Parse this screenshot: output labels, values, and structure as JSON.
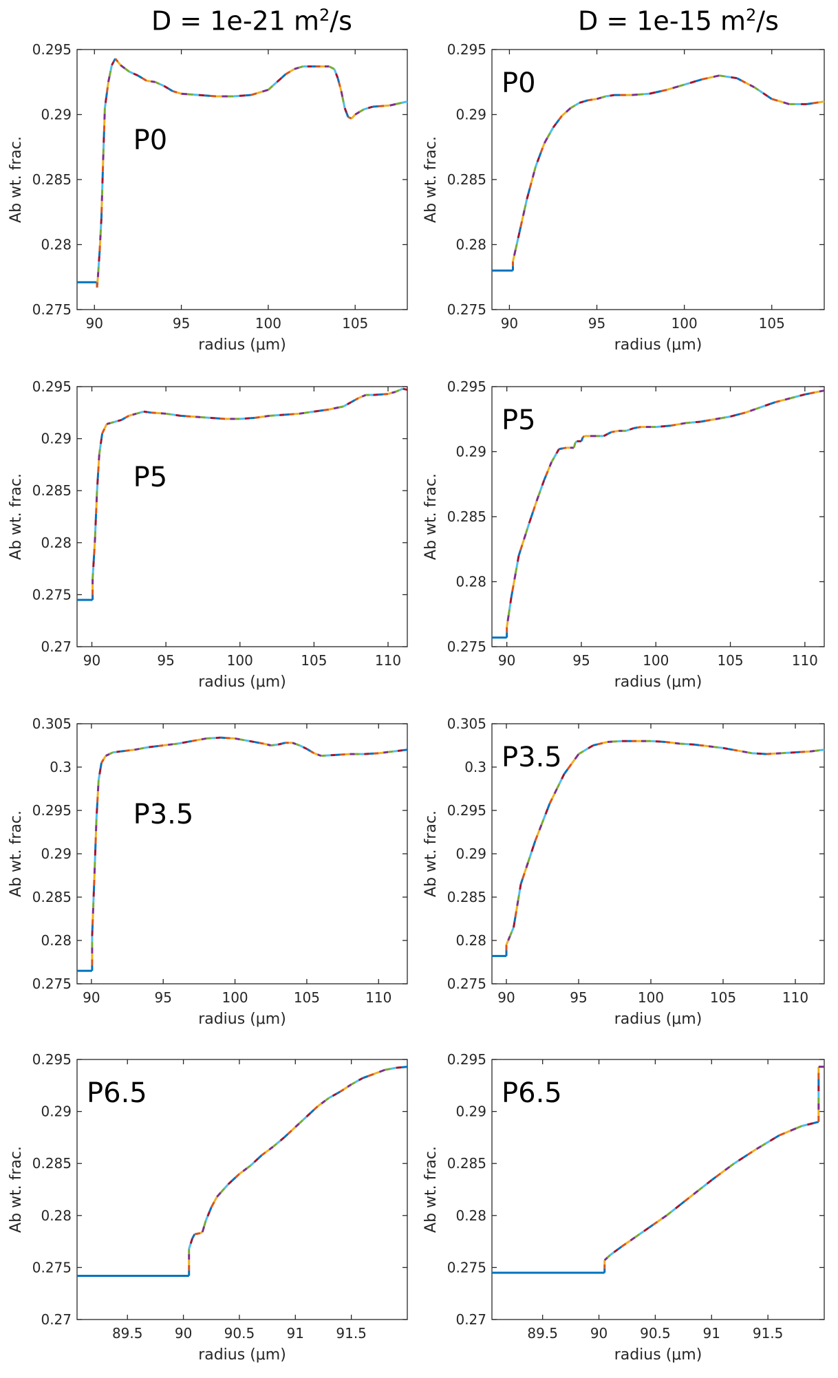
{
  "titles": {
    "left": {
      "base": "D = 1e-21 m",
      "sup": "2",
      "tail": "/s"
    },
    "right": {
      "base": "D = 1e-15 m",
      "sup": "2",
      "tail": "/s"
    }
  },
  "colors": {
    "segments": [
      "#0072BD",
      "#D95319",
      "#EDB120",
      "#7E2F8E",
      "#77AC30",
      "#4DBEEE",
      "#A2142F"
    ],
    "axis": "#262626"
  },
  "chart_data": [
    {
      "type": "line",
      "panel_label": "P0",
      "label_pos": "upper-middle",
      "xlabel": "radius (μm)",
      "ylabel": "Ab wt. frac.",
      "xlim": [
        89,
        108
      ],
      "ylim": [
        0.275,
        0.295
      ],
      "xticks": [
        90,
        95,
        100,
        105
      ],
      "xticklabels": [
        "90",
        "95",
        "100",
        "105"
      ],
      "yticks": [
        0.275,
        0.28,
        0.285,
        0.29,
        0.295
      ],
      "yticklabels": [
        "0.275",
        "0.28",
        "0.285",
        "0.29",
        "0.295"
      ],
      "x": [
        89,
        90.15,
        90.15,
        90.2,
        90.3,
        90.4,
        90.5,
        90.6,
        90.8,
        91.0,
        91.2,
        91.5,
        92.0,
        92.5,
        93.0,
        93.5,
        94.0,
        94.5,
        95.0,
        96.0,
        97.0,
        98.0,
        99.0,
        100.0,
        100.5,
        101.0,
        101.5,
        102.0,
        102.5,
        103.0,
        103.5,
        103.8,
        104.0,
        104.2,
        104.4,
        104.6,
        104.8,
        105.0,
        105.5,
        106.0,
        107.0,
        108.0
      ],
      "y": [
        0.2771,
        0.2771,
        0.2767,
        0.2775,
        0.2795,
        0.282,
        0.2865,
        0.2905,
        0.2925,
        0.2938,
        0.2943,
        0.2938,
        0.2933,
        0.293,
        0.2926,
        0.2925,
        0.2922,
        0.2918,
        0.2916,
        0.2915,
        0.2914,
        0.2914,
        0.2915,
        0.2919,
        0.2925,
        0.2931,
        0.2935,
        0.2937,
        0.2937,
        0.2937,
        0.2937,
        0.2935,
        0.2928,
        0.2918,
        0.2905,
        0.2898,
        0.2897,
        0.29,
        0.2904,
        0.2906,
        0.2907,
        0.291
      ]
    },
    {
      "type": "line",
      "panel_label": "P0",
      "label_pos": "upper-left",
      "xlabel": "radius (μm)",
      "ylabel": "Ab wt. frac.",
      "xlim": [
        89,
        108
      ],
      "ylim": [
        0.275,
        0.295
      ],
      "xticks": [
        90,
        95,
        100,
        105
      ],
      "xticklabels": [
        "90",
        "95",
        "100",
        "105"
      ],
      "yticks": [
        0.275,
        0.28,
        0.285,
        0.29,
        0.295
      ],
      "yticklabels": [
        "0.275",
        "0.28",
        "0.285",
        "0.29",
        "0.295"
      ],
      "x": [
        89,
        90.2,
        90.2,
        90.5,
        91.0,
        91.5,
        92.0,
        92.5,
        93.0,
        93.5,
        94.0,
        94.5,
        95.0,
        95.5,
        96.0,
        97.0,
        98.0,
        99.0,
        100.0,
        101.0,
        102.0,
        103.0,
        104.0,
        105.0,
        106.0,
        107.0,
        108.0
      ],
      "y": [
        0.278,
        0.278,
        0.2787,
        0.2805,
        0.2835,
        0.286,
        0.2878,
        0.289,
        0.2899,
        0.2905,
        0.2909,
        0.2911,
        0.2912,
        0.2914,
        0.2915,
        0.2915,
        0.2916,
        0.2919,
        0.2923,
        0.2927,
        0.293,
        0.2928,
        0.2921,
        0.2912,
        0.2908,
        0.2908,
        0.291
      ]
    },
    {
      "type": "line",
      "panel_label": "P5",
      "label_pos": "upper-middle",
      "xlabel": "radius (μm)",
      "ylabel": "Ab wt. frac.",
      "xlim": [
        89,
        111.3
      ],
      "ylim": [
        0.27,
        0.295
      ],
      "xticks": [
        90,
        95,
        100,
        105,
        110
      ],
      "xticklabels": [
        "90",
        "95",
        "100",
        "105",
        "110"
      ],
      "yticks": [
        0.27,
        0.275,
        0.28,
        0.285,
        0.29,
        0.295
      ],
      "yticklabels": [
        "0.27",
        "0.275",
        "0.28",
        "0.285",
        "0.29",
        "0.295"
      ],
      "x": [
        89,
        90.05,
        90.05,
        90.2,
        90.35,
        90.5,
        90.7,
        91.0,
        91.5,
        92.0,
        92.5,
        93.0,
        93.5,
        94.0,
        95.0,
        96.0,
        97.0,
        98.0,
        99.0,
        100.0,
        101.0,
        102.0,
        103.0,
        104.0,
        105.0,
        106.0,
        107.0,
        107.5,
        108.0,
        108.5,
        109.0,
        110.0,
        110.5,
        111.0,
        111.3
      ],
      "y": [
        0.2745,
        0.2745,
        0.2765,
        0.28,
        0.285,
        0.2885,
        0.2905,
        0.2914,
        0.2916,
        0.2918,
        0.2922,
        0.2924,
        0.2926,
        0.2925,
        0.2924,
        0.2922,
        0.2921,
        0.292,
        0.2919,
        0.2919,
        0.292,
        0.2922,
        0.2923,
        0.2924,
        0.2926,
        0.2928,
        0.2931,
        0.2935,
        0.2939,
        0.2942,
        0.2942,
        0.2943,
        0.2945,
        0.2948,
        0.2947
      ]
    },
    {
      "type": "line",
      "panel_label": "P5",
      "label_pos": "upper-left",
      "xlabel": "radius (μm)",
      "ylabel": "Ab wt. frac.",
      "xlim": [
        89,
        111.3
      ],
      "ylim": [
        0.275,
        0.295
      ],
      "xticks": [
        90,
        95,
        100,
        105,
        110
      ],
      "xticklabels": [
        "90",
        "95",
        "100",
        "105",
        "110"
      ],
      "yticks": [
        0.275,
        0.28,
        0.285,
        0.29,
        0.295
      ],
      "yticklabels": [
        "0.275",
        "0.28",
        "0.285",
        "0.29",
        "0.295"
      ],
      "x": [
        89,
        90.0,
        90.0,
        90.3,
        90.8,
        91.5,
        92.0,
        92.5,
        93.0,
        93.5,
        94.0,
        94.5,
        94.6,
        94.7,
        95.0,
        95.1,
        95.2,
        96.0,
        96.5,
        97.0,
        97.5,
        98.0,
        98.5,
        99.0,
        100.0,
        101.0,
        102.0,
        103.0,
        104.0,
        105.0,
        106.0,
        107.0,
        108.0,
        109.0,
        110.0,
        111.3
      ],
      "y": [
        0.2757,
        0.2757,
        0.2765,
        0.2788,
        0.282,
        0.2845,
        0.2862,
        0.2878,
        0.2892,
        0.2902,
        0.2903,
        0.2903,
        0.2907,
        0.2908,
        0.2908,
        0.2911,
        0.2912,
        0.2912,
        0.2912,
        0.2915,
        0.2916,
        0.2916,
        0.2918,
        0.2919,
        0.2919,
        0.292,
        0.2922,
        0.2923,
        0.2925,
        0.2927,
        0.293,
        0.2934,
        0.2938,
        0.2941,
        0.2944,
        0.2947
      ]
    },
    {
      "type": "line",
      "panel_label": "P3.5",
      "label_pos": "upper-middle",
      "xlabel": "radius (μm)",
      "ylabel": "Ab wt. frac.",
      "xlim": [
        89,
        112
      ],
      "ylim": [
        0.275,
        0.305
      ],
      "xticks": [
        90,
        95,
        100,
        105,
        110
      ],
      "xticklabels": [
        "90",
        "95",
        "100",
        "105",
        "110"
      ],
      "yticks": [
        0.275,
        0.28,
        0.285,
        0.29,
        0.295,
        0.3,
        0.305
      ],
      "yticklabels": [
        "0.275",
        "0.28",
        "0.285",
        "0.29",
        "0.295",
        "0.3",
        "0.305"
      ],
      "x": [
        89,
        90.05,
        90.05,
        90.2,
        90.35,
        90.5,
        90.7,
        91.0,
        91.5,
        92.0,
        93.0,
        94.0,
        95.0,
        96.0,
        97.0,
        98.0,
        99.0,
        100.0,
        101.0,
        102.0,
        102.5,
        103.0,
        103.5,
        104.0,
        104.5,
        105.0,
        105.5,
        106.0,
        107.0,
        108.0,
        109.0,
        110.0,
        111.0,
        112.0
      ],
      "y": [
        0.2765,
        0.2765,
        0.2805,
        0.287,
        0.294,
        0.2985,
        0.3005,
        0.3013,
        0.3017,
        0.3018,
        0.302,
        0.3023,
        0.3025,
        0.3027,
        0.303,
        0.3033,
        0.3034,
        0.3033,
        0.303,
        0.3027,
        0.3025,
        0.3026,
        0.3028,
        0.3028,
        0.3025,
        0.3021,
        0.3016,
        0.3013,
        0.3014,
        0.3015,
        0.3015,
        0.3016,
        0.3018,
        0.302
      ]
    },
    {
      "type": "line",
      "panel_label": "P3.5",
      "label_pos": "upper-left",
      "xlabel": "radius (μm)",
      "ylabel": "Ab wt. frac.",
      "xlim": [
        89,
        112
      ],
      "ylim": [
        0.275,
        0.305
      ],
      "xticks": [
        90,
        95,
        100,
        105,
        110
      ],
      "xticklabels": [
        "90",
        "95",
        "100",
        "105",
        "110"
      ],
      "yticks": [
        0.275,
        0.28,
        0.285,
        0.29,
        0.295,
        0.3,
        0.305
      ],
      "yticklabels": [
        "0.275",
        "0.28",
        "0.285",
        "0.29",
        "0.295",
        "0.3",
        "0.305"
      ],
      "x": [
        89,
        90.0,
        90.0,
        90.5,
        91.0,
        92.0,
        93.0,
        94.0,
        95.0,
        96.0,
        97.0,
        98.0,
        99.0,
        100.0,
        101.0,
        102.0,
        103.0,
        104.0,
        105.0,
        106.0,
        107.0,
        108.0,
        109.0,
        110.0,
        111.0,
        112.0
      ],
      "y": [
        0.2782,
        0.2782,
        0.2795,
        0.2815,
        0.2865,
        0.2915,
        0.2958,
        0.2992,
        0.3015,
        0.3025,
        0.3029,
        0.303,
        0.303,
        0.303,
        0.3029,
        0.3027,
        0.3026,
        0.3024,
        0.3022,
        0.3019,
        0.3016,
        0.3015,
        0.3016,
        0.3017,
        0.3018,
        0.302
      ]
    },
    {
      "type": "line",
      "panel_label": "P6.5",
      "label_pos": "upper-left",
      "xlabel": "radius (μm)",
      "ylabel": "Ab wt. frac.",
      "xlim": [
        89.05,
        92.0
      ],
      "ylim": [
        0.27,
        0.295
      ],
      "xticks": [
        89.5,
        90,
        90.5,
        91,
        91.5
      ],
      "xticklabels": [
        "89.5",
        "90",
        "90.5",
        "91",
        "91.5"
      ],
      "yticks": [
        0.27,
        0.275,
        0.28,
        0.285,
        0.29,
        0.295
      ],
      "yticklabels": [
        "0.27",
        "0.275",
        "0.28",
        "0.285",
        "0.29",
        "0.295"
      ],
      "x": [
        89.05,
        90.05,
        90.05,
        90.08,
        90.1,
        90.15,
        90.17,
        90.2,
        90.25,
        90.3,
        90.4,
        90.5,
        90.6,
        90.7,
        90.8,
        90.9,
        91.0,
        91.1,
        91.2,
        91.3,
        91.4,
        91.5,
        91.6,
        91.7,
        91.8,
        91.9,
        92.0
      ],
      "y": [
        0.2742,
        0.2742,
        0.2768,
        0.2778,
        0.2782,
        0.2783,
        0.2784,
        0.2795,
        0.2808,
        0.2818,
        0.283,
        0.284,
        0.2848,
        0.2858,
        0.2866,
        0.2875,
        0.2885,
        0.2895,
        0.2905,
        0.2913,
        0.2919,
        0.2926,
        0.2932,
        0.2936,
        0.294,
        0.2942,
        0.2943
      ]
    },
    {
      "type": "line",
      "panel_label": "P6.5",
      "label_pos": "upper-left",
      "xlabel": "radius (μm)",
      "ylabel": "Ab wt. frac.",
      "xlim": [
        89.05,
        92.0
      ],
      "ylim": [
        0.27,
        0.295
      ],
      "xticks": [
        89.5,
        90,
        90.5,
        91,
        91.5
      ],
      "xticklabels": [
        "89.5",
        "90",
        "90.5",
        "91",
        "91.5"
      ],
      "yticks": [
        0.27,
        0.275,
        0.28,
        0.285,
        0.29,
        0.295
      ],
      "yticklabels": [
        "0.27",
        "0.275",
        "0.28",
        "0.285",
        "0.29",
        "0.295"
      ],
      "x": [
        89.05,
        90.05,
        90.05,
        90.1,
        90.2,
        90.4,
        90.6,
        90.8,
        91.0,
        91.2,
        91.4,
        91.6,
        91.8,
        91.95,
        91.95,
        92.0
      ],
      "y": [
        0.2745,
        0.2745,
        0.2757,
        0.2762,
        0.277,
        0.2785,
        0.28,
        0.2817,
        0.2834,
        0.285,
        0.2864,
        0.2877,
        0.2886,
        0.289,
        0.2943,
        0.2943
      ]
    }
  ]
}
